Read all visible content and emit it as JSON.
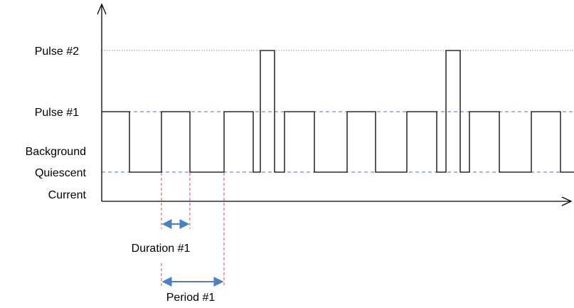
{
  "levels": {
    "pulse2": "Pulse #2",
    "pulse1": "Pulse #1",
    "background_line1": "Background",
    "background_line2": "Quiescent",
    "background_line3": "Current"
  },
  "annotations": {
    "duration": "Duration #1",
    "period": "Period #1"
  },
  "colors": {
    "axis": "#000000",
    "signal": "#000000",
    "level_guide": "#4a76b0",
    "pulse2_guide": "#6a93c9",
    "marker": "#d9504a",
    "span_arrow": "#4a80c4"
  }
}
